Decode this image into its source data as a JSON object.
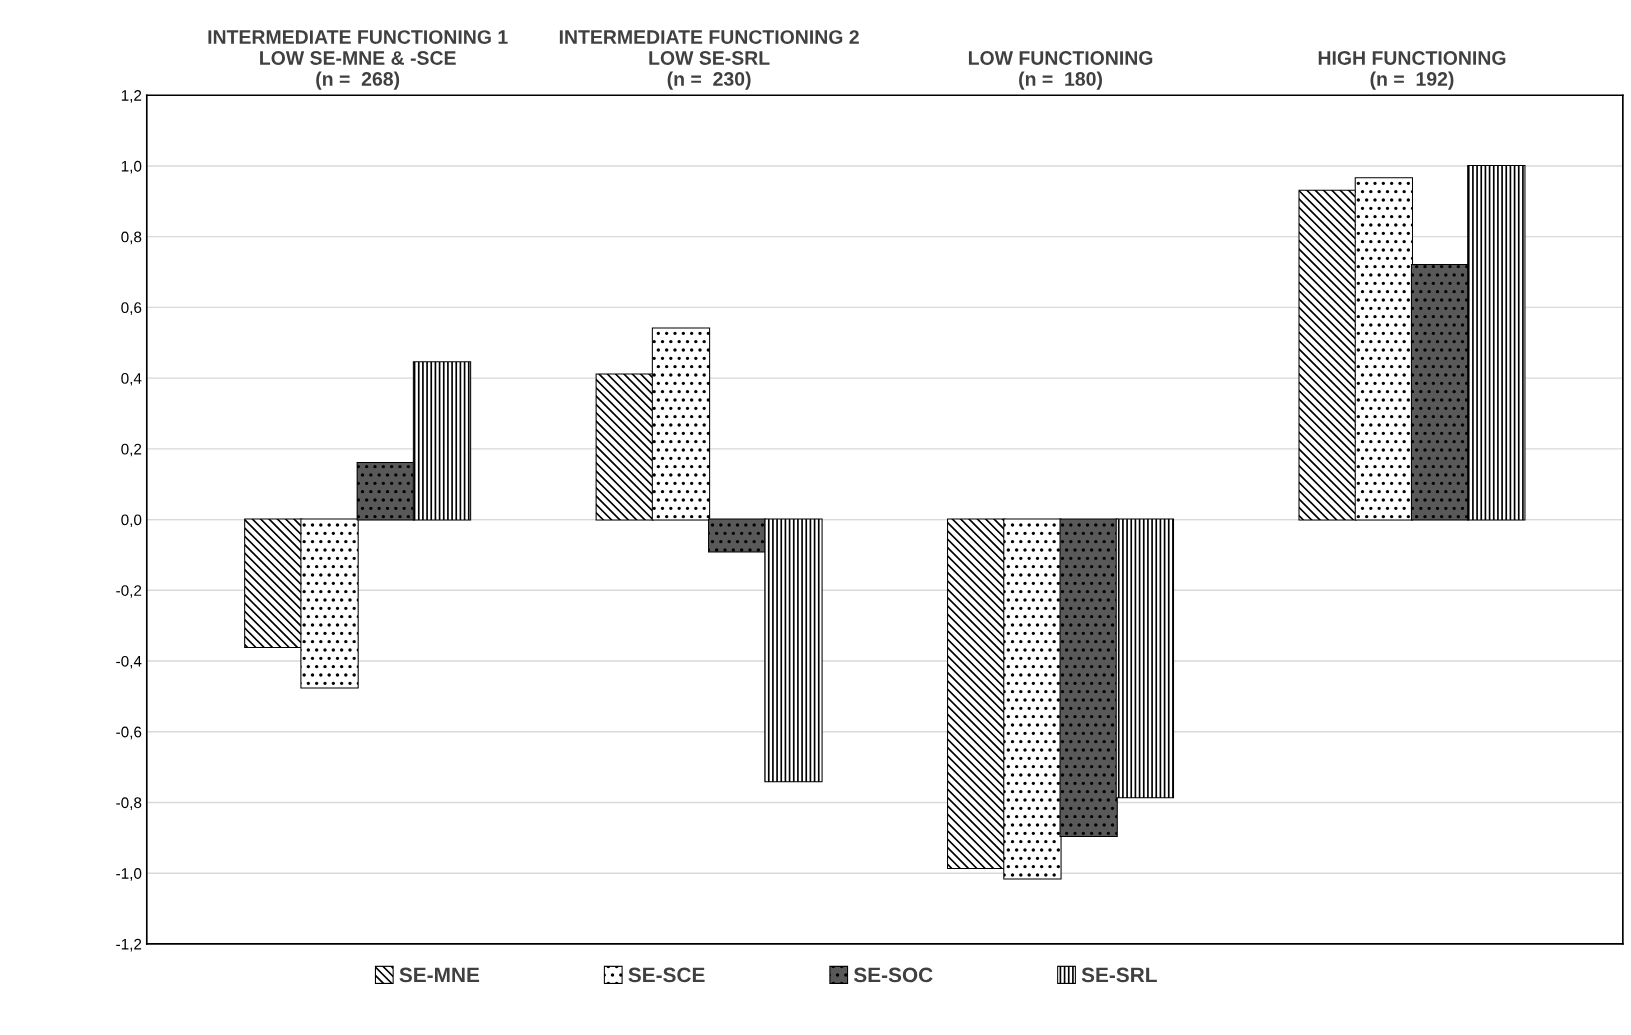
{
  "chart_data": {
    "type": "bar",
    "categories": [
      "INTERMEDIATE FUNCTIONING 1\nLOW SE-MNE & -SCE\n(n =  268)",
      "INTERMEDIATE FUNCTIONING 2\nLOW SE-SRL\n(n =  230)",
      "LOW FUNCTIONING\n(n =  180)",
      "HIGH FUNCTIONING\n(n =  192)"
    ],
    "series": [
      {
        "name": "SE-MNE",
        "color": "#ffffff",
        "values": [
          -0.36,
          0.41,
          -0.985,
          0.93
        ]
      },
      {
        "name": "SE-SCE",
        "color": "#ffffff",
        "values": [
          -0.475,
          0.54,
          -1.015,
          0.965
        ]
      },
      {
        "name": "SE-SOC",
        "color": "#595959",
        "values": [
          0.16,
          -0.09,
          -0.895,
          0.72
        ]
      },
      {
        "name": "SE-SRL",
        "color": "#ffffff",
        "values": [
          0.445,
          -0.74,
          -0.785,
          1.0
        ]
      }
    ],
    "ylim": [
      -1.2,
      1.2
    ],
    "yticks": [
      {
        "value": -1.2,
        "label": "-1,2"
      },
      {
        "value": -1.0,
        "label": "-1,0"
      },
      {
        "value": -0.8,
        "label": "-0,8"
      },
      {
        "value": -0.6,
        "label": "-0,6"
      },
      {
        "value": -0.4,
        "label": "-0,4"
      },
      {
        "value": -0.2,
        "label": "-0,2"
      },
      {
        "value": 0.0,
        "label": "0,0"
      },
      {
        "value": 0.2,
        "label": "0,2"
      },
      {
        "value": 0.4,
        "label": "0,4"
      },
      {
        "value": 0.6,
        "label": "0,6"
      },
      {
        "value": 0.8,
        "label": "0,8"
      },
      {
        "value": 1.0,
        "label": "1,0"
      },
      {
        "value": 1.2,
        "label": "1,2"
      }
    ],
    "grid": "y",
    "legend": "bottom"
  }
}
